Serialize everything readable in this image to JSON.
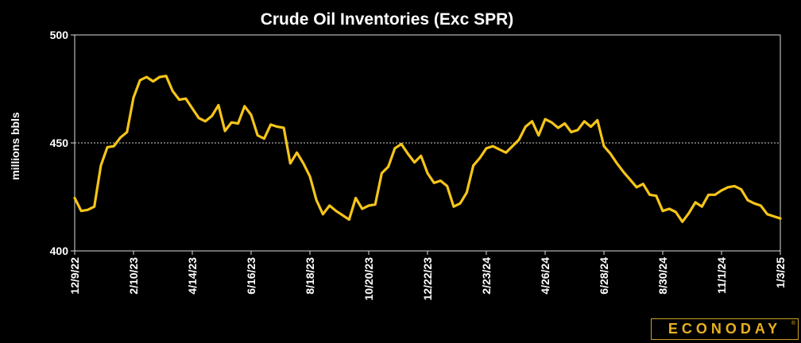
{
  "chart_data": {
    "type": "line",
    "title": "Crude Oil Inventories (Exc SPR)",
    "ylabel": "millions bbls",
    "xlabel": "",
    "ylim": [
      400,
      500
    ],
    "y_ticks": [
      400,
      450,
      500
    ],
    "grid": "horizontal dashed line at 450",
    "tick_labels": [
      "12/9/22",
      "2/10/23",
      "4/14/23",
      "6/16/23",
      "8/18/23",
      "10/20/23",
      "12/22/23",
      "2/23/24",
      "4/26/24",
      "6/28/24",
      "8/30/24",
      "11/1/24",
      "1/3/25"
    ],
    "series": [
      {
        "color": "#f5c518",
        "values": [
          424.5,
          418.5,
          419,
          420.5,
          439.5,
          448,
          448.5,
          452.5,
          455,
          471,
          479,
          480.5,
          478.5,
          480.5,
          481,
          474,
          470,
          470.5,
          466,
          461.5,
          460,
          462.5,
          467.5,
          455.5,
          459.5,
          459,
          467,
          463,
          453.5,
          452,
          458.5,
          457.5,
          457,
          440.5,
          445.5,
          440.5,
          434.5,
          423.5,
          417,
          421,
          418.5,
          416.5,
          414.5,
          424.5,
          419.5,
          421,
          421.5,
          436,
          439,
          447.5,
          449.5,
          445,
          441,
          444,
          436,
          431.5,
          432.5,
          430,
          420.5,
          422,
          427,
          439.5,
          443,
          447.5,
          448.5,
          447,
          445.5,
          448.5,
          451.5,
          457.5,
          460,
          453.5,
          461,
          459.5,
          457,
          459,
          455,
          456,
          460,
          457.5,
          460.5,
          448.5,
          445,
          440.5,
          436.5,
          433,
          429.5,
          431,
          426,
          425.5,
          418.5,
          419.5,
          418,
          413.5,
          417.5,
          422.5,
          420.5,
          426,
          426,
          428,
          429.5,
          430,
          428.5,
          423.5,
          422,
          421,
          417,
          416,
          415
        ]
      }
    ]
  },
  "brand": {
    "logo_text": "ECONODAY",
    "logo_mark": "®",
    "logo_color": "#e8b020"
  }
}
